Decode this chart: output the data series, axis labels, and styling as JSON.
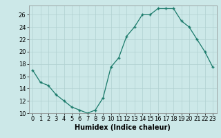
{
  "x": [
    0,
    1,
    2,
    3,
    4,
    5,
    6,
    7,
    8,
    9,
    10,
    11,
    12,
    13,
    14,
    15,
    16,
    17,
    18,
    19,
    20,
    21,
    22,
    23
  ],
  "y": [
    17,
    15,
    14.5,
    13,
    12,
    11,
    10.5,
    10,
    10.5,
    12.5,
    17.5,
    19.0,
    22.5,
    24.0,
    26.0,
    26.0,
    27.0,
    27.0,
    27.0,
    25.0,
    24.0,
    22.0,
    20.0,
    17.5
  ],
  "line_color": "#1a7a6a",
  "marker_color": "#1a7a6a",
  "bg_color": "#cce8e8",
  "grid_color": "#b0d0d0",
  "xlabel": "Humidex (Indice chaleur)",
  "xlabel_fontsize": 7,
  "tick_fontsize": 6,
  "ylim": [
    10,
    27.5
  ],
  "xlim": [
    -0.5,
    23.5
  ],
  "yticks": [
    10,
    12,
    14,
    16,
    18,
    20,
    22,
    24,
    26
  ],
  "xticks": [
    0,
    1,
    2,
    3,
    4,
    5,
    6,
    7,
    8,
    9,
    10,
    11,
    12,
    13,
    14,
    15,
    16,
    17,
    18,
    19,
    20,
    21,
    22,
    23
  ]
}
